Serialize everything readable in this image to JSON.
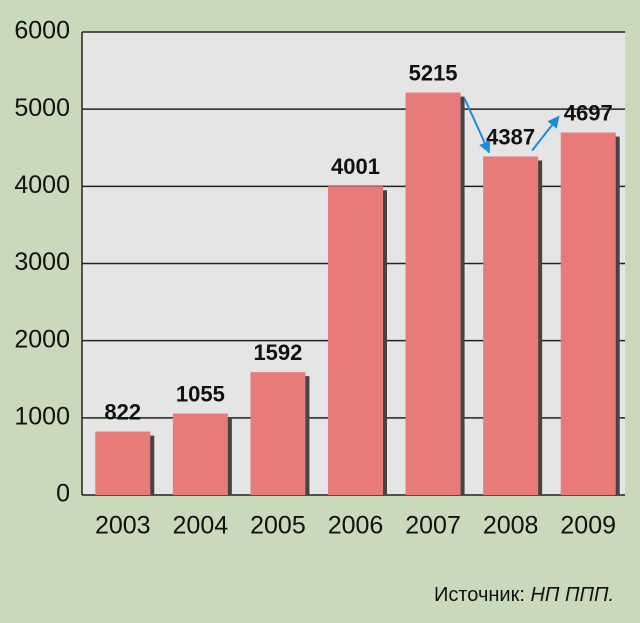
{
  "chart_data": {
    "type": "bar",
    "categories": [
      "2003",
      "2004",
      "2005",
      "2006",
      "2007",
      "2008",
      "2009"
    ],
    "values": [
      822,
      1055,
      1592,
      4001,
      5215,
      4387,
      4697
    ],
    "color": "#e97a7a",
    "ylim": [
      0,
      6000
    ],
    "yticks": [
      0,
      1000,
      2000,
      3000,
      4000,
      5000,
      6000
    ],
    "grid": true
  },
  "source": {
    "label": "Источник:",
    "name": "НП ППП."
  }
}
